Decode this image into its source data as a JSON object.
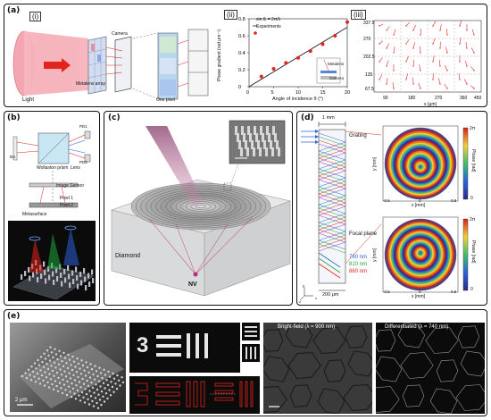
{
  "panels": {
    "a": {
      "tag": "(a)",
      "sub_i": "(i)",
      "sub_ii": "(ii)",
      "sub_iii": "(iii)",
      "labels": {
        "light": "Light",
        "metalens_array": "Metalens array",
        "camera": "Camera",
        "one_pixel": "One pixel",
        "metalens": "Metalens",
        "camera_inset": "Camera"
      },
      "legend": {
        "theory": "sin θᵢ = 2π/λ",
        "experiments": "Experiments"
      }
    },
    "b": {
      "tag": "(b)",
      "labels": {
        "wollaston": "Wollaston prism",
        "lens": "Lens",
        "image_sensor": "Image Sensor",
        "pixel1": "Pixel 1",
        "pixel2": "Pixel 2",
        "metasurface": "Metasurface",
        "pd1": "PD1",
        "pd2": "PD2",
        "bs": "BS"
      }
    },
    "c": {
      "tag": "(c)",
      "labels": {
        "diamond": "Diamond",
        "nv": "NV"
      }
    },
    "d": {
      "tag": "(d)",
      "labels": {
        "scale_top": "1 mm",
        "grating": "Grating",
        "focal_plane": "Focal plane",
        "wl1": "760 nm",
        "wl2": "810 nm",
        "wl3": "860 nm",
        "scale_bottom": "200 μm",
        "x_label": "x [mm]",
        "y_label": "y [mm]",
        "phase_label": "Phase [rad]",
        "cb_top": "2π",
        "cb_bottom": "0",
        "ticks_x": [
          "-0.5",
          "0",
          "0.5"
        ],
        "ticks_y": [
          "0.5",
          "0",
          "-0.5"
        ],
        "axes_x": "x",
        "axes_y": "y",
        "axes_z": "z"
      }
    },
    "e": {
      "tag": "(e)",
      "labels": {
        "scalebar_sem": "2 μm",
        "digit": "3",
        "bright_field": "Bright-field (λ = 900 nm)",
        "differentiated": "Differentiated (λ = 740 nm)"
      }
    }
  },
  "chart_data": {
    "type": "scatter",
    "title": "",
    "xlabel": "Angle of incidence θ (°)",
    "ylabel": "Phase gradient (rad μm⁻¹)",
    "xlim": [
      0,
      20
    ],
    "ylim": [
      0,
      0.8
    ],
    "x_ticks": [
      0,
      5,
      10,
      15,
      20
    ],
    "y_ticks": [
      "0",
      "0.2",
      "0.4",
      "0.6",
      "0.8"
    ],
    "legend_position": "top-left",
    "series": [
      {
        "name": "sin θᵢ = 2π/λ",
        "kind": "line",
        "x": [
          0,
          20
        ],
        "y": [
          0.0,
          0.7
        ]
      },
      {
        "name": "Experiments",
        "kind": "points",
        "x": [
          2.5,
          5,
          7.5,
          10,
          12.5,
          15,
          17.5,
          20
        ],
        "y": [
          0.12,
          0.21,
          0.28,
          0.34,
          0.42,
          0.5,
          0.6,
          0.76
        ]
      }
    ]
  },
  "colors": {
    "red": "#e3241b",
    "magenta": "#b5307a",
    "blue": "#2b63d9",
    "green": "#1fa83a"
  }
}
